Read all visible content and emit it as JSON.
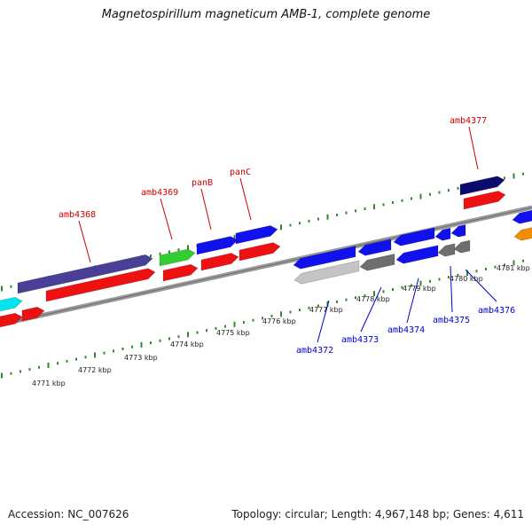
{
  "title": "Magnetospirillum magneticum AMB-1, complete genome",
  "footer": {
    "accession": "Accession: NC_007626",
    "topology": "Topology: circular; Length: 4,967,148 bp; Genes: 4,611"
  },
  "scale_ticks": [
    "4771 kbp",
    "4772 kbp",
    "4773 kbp",
    "4774 kbp",
    "4775 kbp",
    "4776 kbp",
    "4777 kbp",
    "4778 kbp",
    "4779 kbp",
    "4780 kbp",
    "4781 kbp"
  ],
  "top_labels": [
    "amb4368",
    "amb4369",
    "panB",
    "panC",
    "amb4377"
  ],
  "bottom_labels": [
    "amb4372",
    "amb4373",
    "amb4374",
    "amb4375",
    "amb4376"
  ],
  "colors": {
    "top_label": "#cc0000",
    "bottom_label": "#0000cc",
    "tick": "#2e8b2e",
    "backbone": "#8a8a8a",
    "red": "#ee1111",
    "blue": "#1111ee",
    "navy": "#0b0b6e",
    "slate": "#4a3f96",
    "green": "#33cc33",
    "cyan": "#00e5ee",
    "gray": "#6e6e6e",
    "light_gray": "#c4c4c4",
    "orange": "#f28c00"
  }
}
